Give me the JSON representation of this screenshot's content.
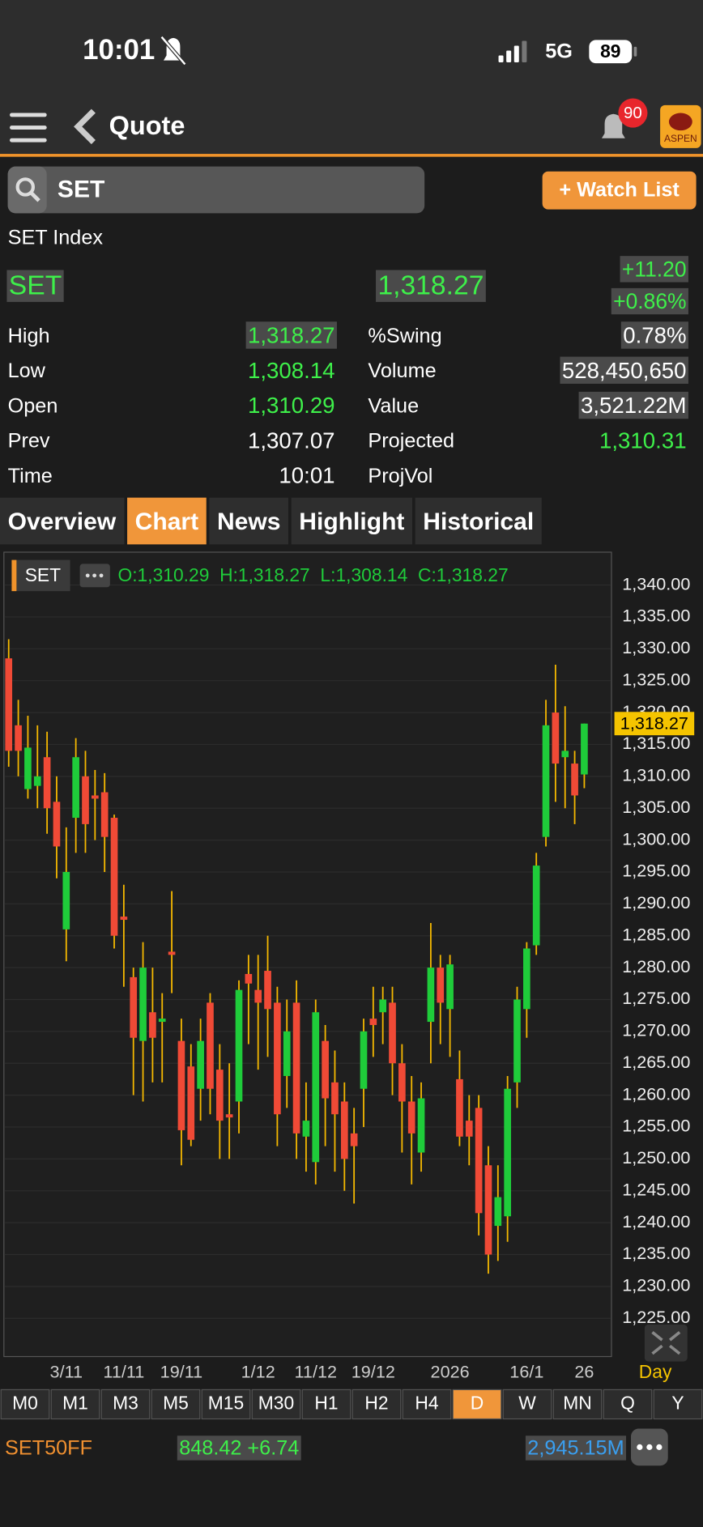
{
  "status": {
    "time": "10:01",
    "network": "5G",
    "battery": "89"
  },
  "header": {
    "title": "Quote",
    "notifications": "90",
    "logo": "ASPEN"
  },
  "search": {
    "query": "SET",
    "button": "+ Watch List"
  },
  "index": {
    "name": "SET Index",
    "symbol": "SET",
    "last": "1,318.27",
    "change": "+11.20",
    "change_pct": "+0.86%"
  },
  "stats": {
    "left": [
      {
        "label": "High",
        "value": "1,318.27",
        "color": "#3ef04a",
        "highlight": true
      },
      {
        "label": "Low",
        "value": "1,308.14",
        "color": "#3ef04a",
        "highlight": false
      },
      {
        "label": "Open",
        "value": "1,310.29",
        "color": "#3ef04a",
        "highlight": false
      },
      {
        "label": "Prev",
        "value": "1,307.07",
        "color": "#ffffff",
        "highlight": false
      },
      {
        "label": "Time",
        "value": "10:01",
        "color": "#ffffff",
        "highlight": false
      }
    ],
    "right": [
      {
        "label": "%Swing",
        "value": "0.78%",
        "color": "#ffffff",
        "highlight": true
      },
      {
        "label": "Volume",
        "value": "528,450,650",
        "color": "#ffffff",
        "highlight": true
      },
      {
        "label": "Value",
        "value": "3,521.22M",
        "color": "#ffffff",
        "highlight": true
      },
      {
        "label": "Projected",
        "value": "1,310.31",
        "color": "#3ef04a",
        "highlight": false
      },
      {
        "label": "ProjVol",
        "value": null,
        "color": "#ffffff",
        "highlight": false
      }
    ]
  },
  "tabs": [
    "Overview",
    "Chart",
    "News",
    "Highlight",
    "Historical"
  ],
  "active_tab": 1,
  "chart_data": {
    "type": "candlestick",
    "symbol": "SET",
    "ohlc_label": "O:1,310.29  H:1,318.27  L:1,308.14  C:1,318.27",
    "last_price_label": "1,318.27",
    "interval": "Day",
    "up_color": "#1fcc3a",
    "down_color": "#f04a36",
    "wick_color": "#f5b800",
    "grid": true,
    "categories": [
      null,
      null,
      null,
      null,
      null,
      null,
      "3/11",
      null,
      null,
      null,
      null,
      null,
      "11/11",
      null,
      null,
      null,
      null,
      null,
      "19/11",
      null,
      null,
      null,
      null,
      null,
      null,
      null,
      "1/12",
      null,
      null,
      null,
      null,
      null,
      "11/12",
      null,
      null,
      null,
      null,
      null,
      "19/12",
      null,
      null,
      null,
      null,
      null,
      null,
      null,
      "2026",
      null,
      null,
      null,
      null,
      null,
      null,
      null,
      "16/1",
      null,
      null,
      null,
      null,
      null,
      "26"
    ],
    "open": [
      1328.5,
      1318,
      1308,
      1308.5,
      1313,
      1306,
      1286,
      1303.5,
      1310,
      1307,
      1307.5,
      1303.5,
      1288,
      1278.5,
      1268.5,
      1273,
      1271.5,
      1282.5,
      1268.5,
      1264.5,
      1261,
      1274.5,
      1264,
      1257,
      1259,
      1279,
      1276.5,
      1279.5,
      1274.5,
      1263,
      1274.5,
      1253.5,
      1249.5,
      1268.5,
      1262,
      1259,
      1254,
      1261,
      1272,
      1273,
      1274.5,
      1265,
      1259,
      1251,
      1271.5,
      1280,
      1273.5,
      1262.5,
      1256,
      1258,
      1249,
      1239.5,
      1241,
      1262,
      1273.5,
      1283.5,
      1300.5,
      1320,
      1313,
      1312,
      1310.29
    ],
    "high": [
      1331.5,
      1322,
      1319.5,
      1318,
      1317,
      1310,
      1302,
      1316,
      1314,
      1311,
      1310.5,
      1304,
      1293,
      1280,
      1284,
      1280,
      1276,
      1292,
      1272,
      1268,
      1272,
      1276,
      1268,
      1265,
      1278,
      1282,
      1282,
      1285,
      1277,
      1275,
      1278,
      1262,
      1275,
      1271,
      1267,
      1262,
      1258,
      1272,
      1277,
      1277,
      1277,
      1268,
      1263,
      1262,
      1287,
      1282,
      1282,
      1267,
      1260,
      1260,
      1252,
      1249,
      1263,
      1277,
      1284,
      1298,
      1322,
      1327.5,
      1321,
      1314,
      1318.27
    ],
    "low": [
      1311.5,
      1310,
      1306.5,
      1305,
      1301,
      1294,
      1281,
      1298,
      1298,
      1300,
      1295,
      1283,
      1277,
      1260,
      1259,
      1262,
      1262,
      1276,
      1249,
      1252,
      1256,
      1257,
      1250,
      1250,
      1254,
      1268,
      1264,
      1266,
      1252,
      1258,
      1250,
      1248,
      1246,
      1252,
      1248,
      1245,
      1243,
      1255,
      1266,
      1268,
      1260,
      1251,
      1246,
      1248,
      1265,
      1268,
      1266,
      1252,
      1249,
      1238,
      1232,
      1234,
      1237,
      1258,
      1269,
      1282,
      1299,
      1306,
      1305,
      1302.5,
      1308.14
    ],
    "close": [
      1314,
      1314,
      1314.5,
      1310,
      1305,
      1299,
      1295,
      1313,
      1302.5,
      1306.5,
      1300.5,
      1285,
      1287.5,
      1269,
      1280,
      1269,
      1272,
      1282,
      1254.5,
      1253,
      1268.5,
      1261,
      1256,
      1256.5,
      1276.5,
      1277.5,
      1274.5,
      1273.5,
      1257,
      1270,
      1254,
      1256,
      1273,
      1259.5,
      1257,
      1250,
      1252,
      1270,
      1271,
      1275,
      1265,
      1259,
      1254,
      1259.5,
      1280,
      1274.5,
      1280.5,
      1253.5,
      1253.5,
      1241.5,
      1235,
      1244,
      1261,
      1275,
      1283,
      1296,
      1318,
      1312,
      1314,
      1307,
      1318.27
    ],
    "ylim": [
      1219,
      1345
    ],
    "yticks": [
      {
        "value": 1225,
        "label": "1,225.00"
      },
      {
        "value": 1230,
        "label": "1,230.00"
      },
      {
        "value": 1235,
        "label": "1,235.00"
      },
      {
        "value": 1240,
        "label": "1,240.00"
      },
      {
        "value": 1245,
        "label": "1,245.00"
      },
      {
        "value": 1250,
        "label": "1,250.00"
      },
      {
        "value": 1255,
        "label": "1,255.00"
      },
      {
        "value": 1260,
        "label": "1,260.00"
      },
      {
        "value": 1265,
        "label": "1,265.00"
      },
      {
        "value": 1270,
        "label": "1,270.00"
      },
      {
        "value": 1275,
        "label": "1,275.00"
      },
      {
        "value": 1280,
        "label": "1,280.00"
      },
      {
        "value": 1285,
        "label": "1,285.00"
      },
      {
        "value": 1290,
        "label": "1,290.00"
      },
      {
        "value": 1295,
        "label": "1,295.00"
      },
      {
        "value": 1300,
        "label": "1,300.00"
      },
      {
        "value": 1305,
        "label": "1,305.00"
      },
      {
        "value": 1310,
        "label": "1,310.00"
      },
      {
        "value": 1315,
        "label": "1,315.00"
      },
      {
        "value": 1320,
        "label": "1,320.00"
      },
      {
        "value": 1325,
        "label": "1,325.00"
      },
      {
        "value": 1330,
        "label": "1,330.00"
      },
      {
        "value": 1335,
        "label": "1,335.00"
      },
      {
        "value": 1340,
        "label": "1,340.00"
      }
    ]
  },
  "timeframes": [
    "M0",
    "M1",
    "M3",
    "M5",
    "M15",
    "M30",
    "H1",
    "H2",
    "H4",
    "D",
    "W",
    "MN",
    "Q",
    "Y"
  ],
  "active_timeframe": 9,
  "ticker": {
    "symbol": "SET50FF",
    "price": "848.42 +6.74",
    "value": "2,945.15M"
  }
}
